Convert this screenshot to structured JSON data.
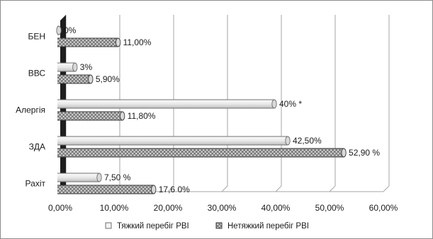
{
  "chart_data": {
    "type": "bar",
    "orientation": "horizontal",
    "style": "3d-cylinder",
    "categories": [
      "БЕН",
      "ВВС",
      "Алергія",
      "ЗДА",
      "Рахіт"
    ],
    "series": [
      {
        "name": "Тяжкий перебіг РВІ",
        "values": [
          0,
          3,
          40,
          42.5,
          7.5
        ],
        "labels": [
          "0%",
          "3%",
          "40% *",
          "42,50%",
          "7,50 %"
        ],
        "color": "#f2f2f2"
      },
      {
        "name": "Нетяжкий перебіг РВІ",
        "values": [
          11,
          5.9,
          11.8,
          52.9,
          17.6
        ],
        "labels": [
          "11,00%",
          "5,90%",
          "11,80%",
          "52,90 %",
          "17,6 0%"
        ],
        "color": "#9a9a9a"
      }
    ],
    "xlim": [
      0,
      60
    ],
    "xticks": [
      0,
      10,
      20,
      30,
      40,
      50,
      60
    ],
    "xtick_labels": [
      "0,00%",
      "10,00%",
      "20,00%",
      "30,00%",
      "40,00%",
      "50,00%",
      "60,00%"
    ],
    "grid": "vertical",
    "legend_position": "bottom",
    "title": "",
    "xlabel": "",
    "ylabel": ""
  }
}
